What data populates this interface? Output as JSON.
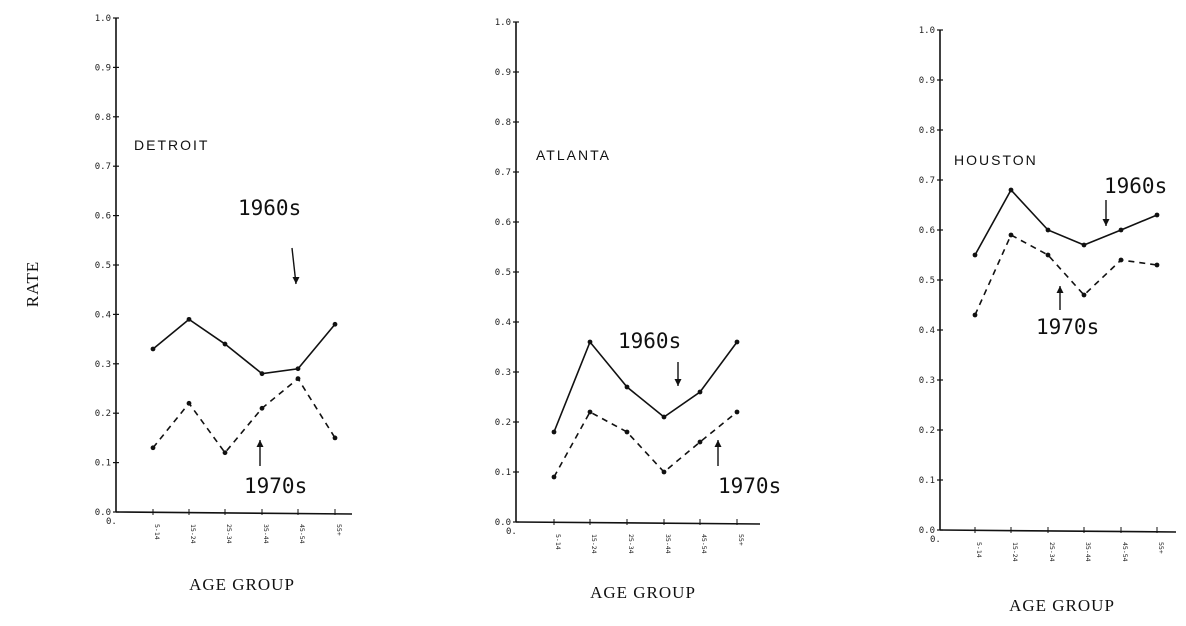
{
  "shared_ylabel": "RATE",
  "chart_data": [
    {
      "type": "line",
      "panel_label": "DETROIT",
      "xlabel": "AGE GROUP",
      "x_origin_label": "0.",
      "categories": [
        "5-14",
        "15-24",
        "25-34",
        "35-44",
        "45-54",
        "55+"
      ],
      "ylim": [
        0,
        1.0
      ],
      "yticks": [
        "0.0",
        "0.1",
        "0.2",
        "0.3",
        "0.4",
        "0.5",
        "0.6",
        "0.7",
        "0.8",
        "0.9",
        "1.0"
      ],
      "series": [
        {
          "name": "1960s",
          "style": "solid",
          "values": [
            0.33,
            0.39,
            0.34,
            0.28,
            0.29,
            0.38
          ]
        },
        {
          "name": "1970s",
          "style": "dashed",
          "values": [
            0.13,
            0.22,
            0.12,
            0.21,
            0.27,
            0.15
          ]
        }
      ]
    },
    {
      "type": "line",
      "panel_label": "ATLANTA",
      "xlabel": "AGE GROUP",
      "x_origin_label": "0.",
      "categories": [
        "5-14",
        "15-24",
        "25-34",
        "35-44",
        "45-54",
        "55+"
      ],
      "ylim": [
        0,
        1.0
      ],
      "yticks": [
        "0.0",
        "0.1",
        "0.2",
        "0.3",
        "0.4",
        "0.5",
        "0.6",
        "0.7",
        "0.8",
        "0.9",
        "1.0"
      ],
      "series": [
        {
          "name": "1960s",
          "style": "solid",
          "values": [
            0.18,
            0.36,
            0.27,
            0.21,
            0.26,
            0.36
          ]
        },
        {
          "name": "1970s",
          "style": "dashed",
          "values": [
            0.09,
            0.22,
            0.18,
            0.1,
            0.16,
            0.22
          ]
        }
      ]
    },
    {
      "type": "line",
      "panel_label": "HOUSTON",
      "xlabel": "AGE GROUP",
      "x_origin_label": "0.",
      "categories": [
        "5-14",
        "15-24",
        "25-34",
        "35-44",
        "45-54",
        "55+"
      ],
      "ylim": [
        0,
        1.0
      ],
      "yticks": [
        "0.0",
        "0.1",
        "0.2",
        "0.3",
        "0.4",
        "0.5",
        "0.6",
        "0.7",
        "0.8",
        "0.9",
        "1.0"
      ],
      "series": [
        {
          "name": "1960s",
          "style": "solid",
          "values": [
            0.55,
            0.68,
            0.6,
            0.57,
            0.6,
            0.63
          ]
        },
        {
          "name": "1970s",
          "style": "dashed",
          "values": [
            0.43,
            0.59,
            0.55,
            0.47,
            0.54,
            0.53
          ]
        }
      ]
    }
  ]
}
